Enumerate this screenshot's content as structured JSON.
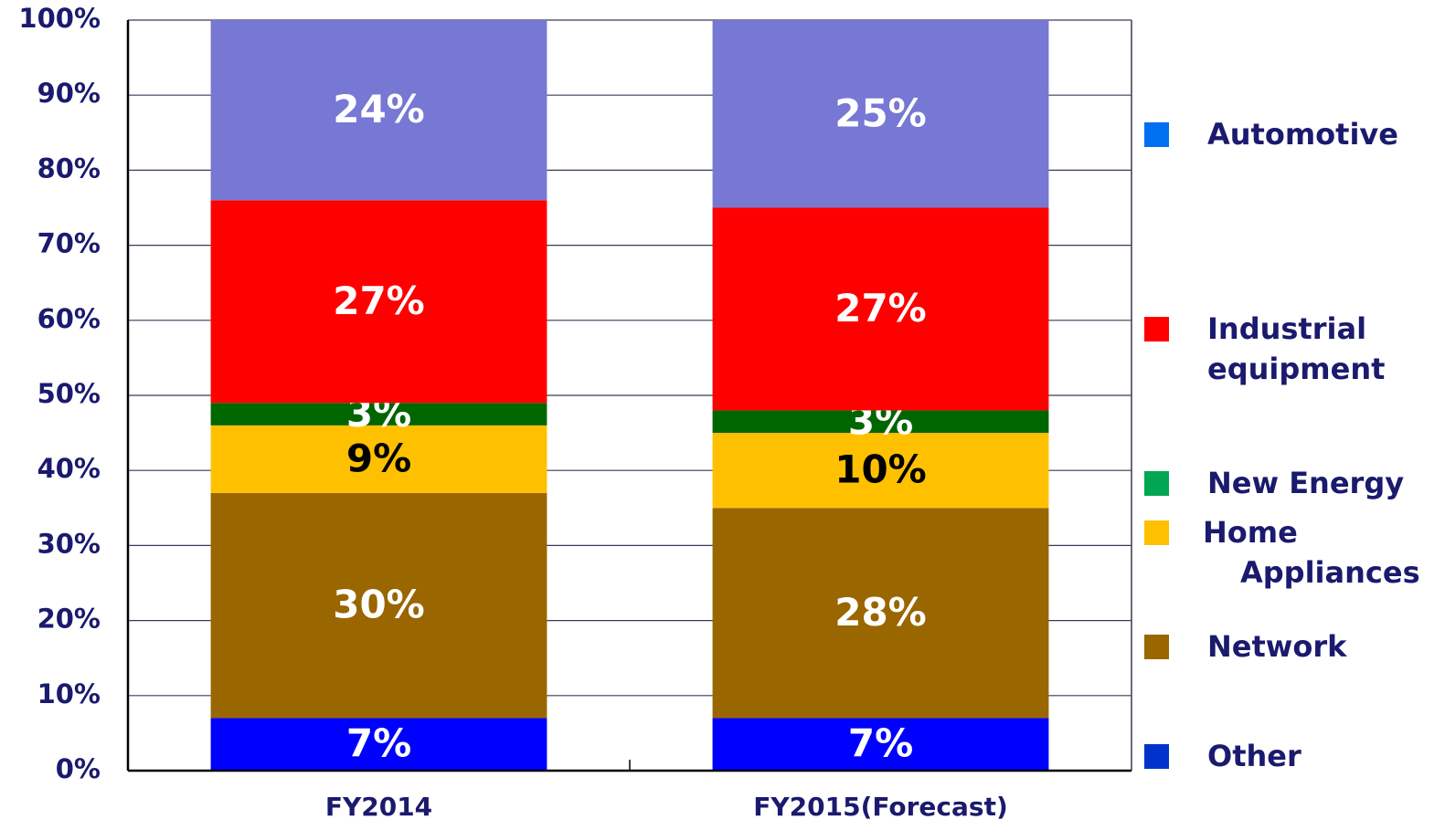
{
  "chart_data": {
    "type": "stacked_bar",
    "categories": [
      "FY2014",
      "FY2015(Forecast)"
    ],
    "series": [
      {
        "name": "Other",
        "color": "#0000ff",
        "legend_color": "#0033cc",
        "label_color": "#ffffff",
        "values": [
          7,
          7
        ],
        "value_labels": [
          "7%",
          "7%"
        ]
      },
      {
        "name": "Network",
        "color": "#996600",
        "legend_color": "#996600",
        "label_color": "#ffffff",
        "values": [
          30,
          28
        ],
        "value_labels": [
          "30%",
          "28%"
        ]
      },
      {
        "name": "Home\nAppliances",
        "color": "#ffc000",
        "legend_color": "#ffc000",
        "label_color": "#000000",
        "values": [
          9,
          10
        ],
        "value_labels": [
          "9%",
          "10%"
        ]
      },
      {
        "name": "New Energy",
        "color": "#006600",
        "legend_color": "#00a651",
        "label_color": "#ffffff",
        "values": [
          3,
          3
        ],
        "value_labels": [
          "3%",
          "3%"
        ]
      },
      {
        "name": "Industrial\nequipment",
        "color": "#ff0000",
        "legend_color": "#ff0000",
        "label_color": "#ffffff",
        "values": [
          27,
          27
        ],
        "value_labels": [
          "27%",
          "27%"
        ]
      },
      {
        "name": "Automotive",
        "color": "#7777d4",
        "legend_color": "#0070f0",
        "label_color": "#ffffff",
        "values": [
          24,
          25
        ],
        "value_labels": [
          "24%",
          "25%"
        ]
      }
    ],
    "ylim": [
      0,
      100
    ],
    "yticks": [
      {
        "value": 0,
        "label": "0%"
      },
      {
        "value": 10,
        "label": "10%"
      },
      {
        "value": 20,
        "label": "20%"
      },
      {
        "value": 30,
        "label": "30%"
      },
      {
        "value": 40,
        "label": "40%"
      },
      {
        "value": 50,
        "label": "50%"
      },
      {
        "value": 60,
        "label": "60%"
      },
      {
        "value": 70,
        "label": "70%"
      },
      {
        "value": 80,
        "label": "80%"
      },
      {
        "value": 90,
        "label": "90%"
      },
      {
        "value": 100,
        "label": "100%"
      }
    ],
    "grid": true,
    "legend": "right"
  }
}
